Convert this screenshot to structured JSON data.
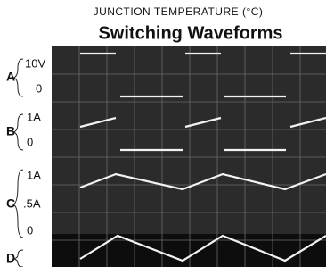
{
  "header": {
    "caption": "JUNCTION TEMPERATURE (°C)",
    "title": "Switching Waveforms"
  },
  "channels": [
    {
      "label": "A",
      "scale": [
        "10V",
        "0"
      ]
    },
    {
      "label": "B",
      "scale": [
        "1A",
        "0"
      ]
    },
    {
      "label": "C",
      "scale": [
        "1A",
        ".5A",
        "0"
      ]
    },
    {
      "label": "D"
    }
  ]
}
